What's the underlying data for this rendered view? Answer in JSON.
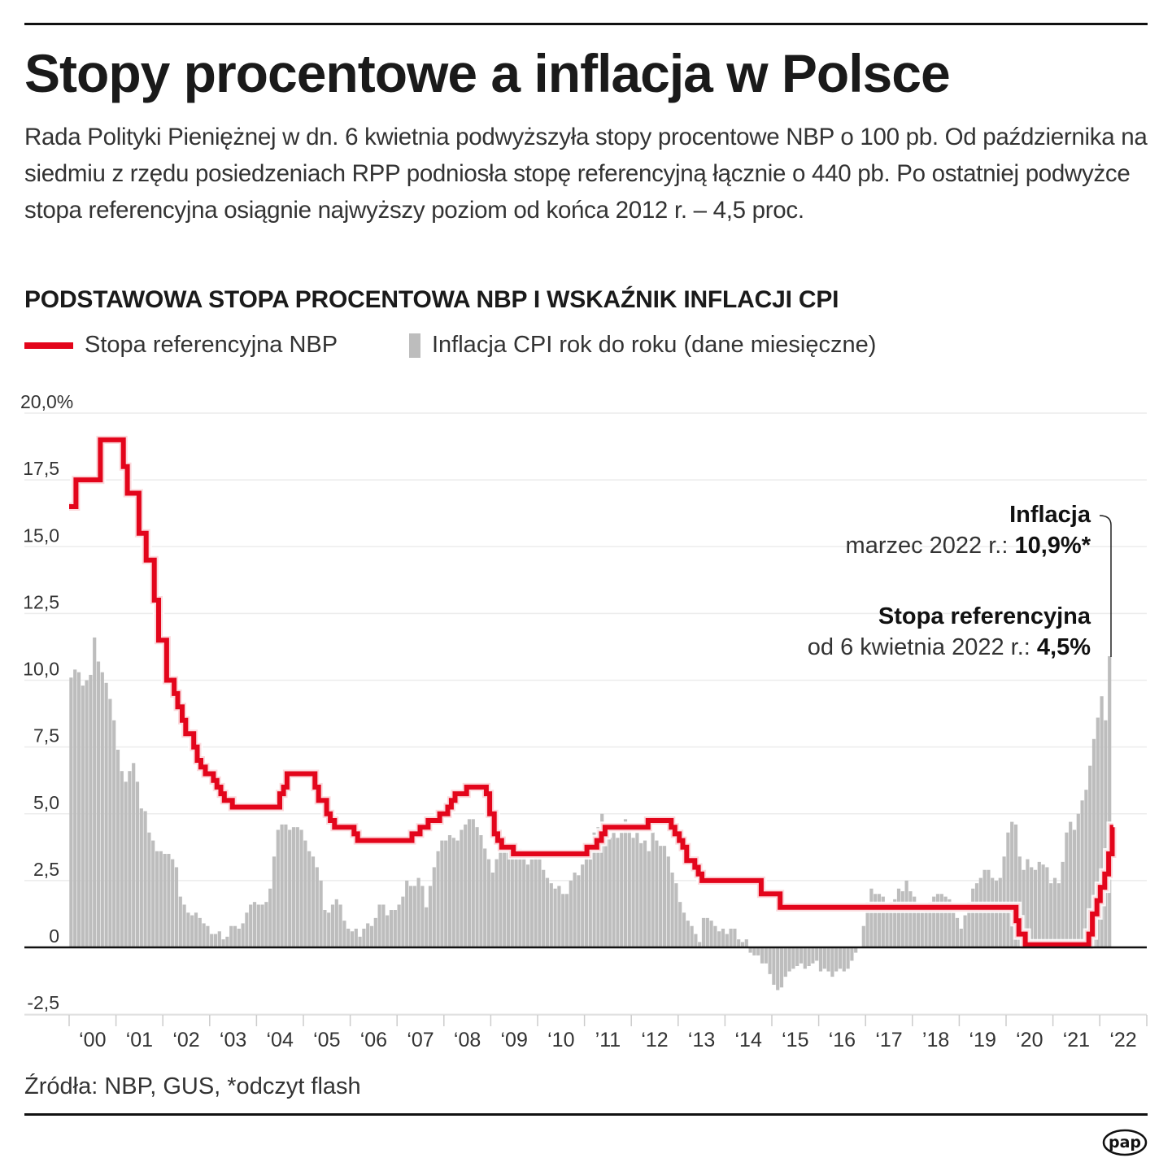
{
  "header": {
    "title": "Stopy procentowe a inflacja w Polsce",
    "lead": "Rada Polityki Pieniężnej w dn. 6 kwietnia podwyższyła stopy procentowe NBP o 100 pb. Od października na siedmiu z rzędu posiedzeniach RPP podniosła stopę referencyjną łącznie o 440 pb. Po ostatniej podwyżce stopa referencyjna osiągnie najwyższy poziom od końca 2012 r. – 4,5 proc."
  },
  "annotations": {
    "inflation_title": "Inflacja",
    "inflation_text": "marzec 2022 r.: ",
    "inflation_value": "10,9%*",
    "rate_title": "Stopa referencyjna",
    "rate_text": "od 6 kwietnia 2022 r.: ",
    "rate_value": "4,5%"
  },
  "footer": {
    "source": "Źródła: NBP, GUS, *odczyt flash",
    "logo": "pap"
  },
  "chart_data": {
    "type": "bar+line",
    "title": "PODSTAWOWA STOPA PROCENTOWA NBP I WSKAŹNIK INFLACJI CPI",
    "legend": {
      "placement": "top-left",
      "line": "Stopa referencyjna NBP",
      "bars": "Inflacja CPI rok do roku (dane miesięczne)"
    },
    "colors": {
      "line": "#e3051b",
      "bars": "#bdbdbd"
    },
    "ylim": [
      -2.5,
      20
    ],
    "y_ticks": [
      {
        "value": 20,
        "label": "20,0%"
      },
      {
        "value": 17.5,
        "label": "17,5"
      },
      {
        "value": 15,
        "label": "15,0"
      },
      {
        "value": 12.5,
        "label": "12,5"
      },
      {
        "value": 10,
        "label": "10,0"
      },
      {
        "value": 7.5,
        "label": "7,5"
      },
      {
        "value": 5,
        "label": "5,0"
      },
      {
        "value": 2.5,
        "label": "2,5"
      },
      {
        "value": 0,
        "label": "0"
      },
      {
        "value": -2.5,
        "label": "-2,5"
      }
    ],
    "x_ticks": [
      "‘00",
      "‘01",
      "‘02",
      "‘03",
      "‘04",
      "‘05",
      "‘06",
      "‘07",
      "‘08",
      "‘09",
      "‘10",
      "’11",
      "‘12",
      "‘13",
      "‘14",
      "‘15",
      "‘16",
      "‘17",
      "’18",
      "‘19",
      "‘20",
      "‘21",
      "‘22"
    ],
    "grid": true,
    "cpi_start": "2000-01",
    "cpi_monthly": [
      10.1,
      10.4,
      10.3,
      9.8,
      10.0,
      10.2,
      11.6,
      10.7,
      10.3,
      9.9,
      9.3,
      8.5,
      7.4,
      6.6,
      6.2,
      6.6,
      6.9,
      6.2,
      5.2,
      5.1,
      4.3,
      4.0,
      3.6,
      3.6,
      3.5,
      3.5,
      3.3,
      3.0,
      1.9,
      1.6,
      1.3,
      1.2,
      1.3,
      1.1,
      0.9,
      0.8,
      0.5,
      0.5,
      0.6,
      0.3,
      0.4,
      0.8,
      0.8,
      0.7,
      0.9,
      1.3,
      1.6,
      1.7,
      1.6,
      1.6,
      1.7,
      2.2,
      3.4,
      4.4,
      4.6,
      4.6,
      4.4,
      4.5,
      4.5,
      4.4,
      4.0,
      3.6,
      3.4,
      3.0,
      2.5,
      1.4,
      1.3,
      1.6,
      1.8,
      1.6,
      1.0,
      0.7,
      0.6,
      0.7,
      0.4,
      0.7,
      0.9,
      0.8,
      1.1,
      1.6,
      1.6,
      1.2,
      1.4,
      1.4,
      1.6,
      1.9,
      2.5,
      2.3,
      2.3,
      2.6,
      2.3,
      1.5,
      2.3,
      3.0,
      3.6,
      4.0,
      4.0,
      4.2,
      4.1,
      4.0,
      4.4,
      4.6,
      4.8,
      4.8,
      4.5,
      4.2,
      3.7,
      3.3,
      2.8,
      3.3,
      3.6,
      4.0,
      3.6,
      3.5,
      3.6,
      3.7,
      3.4,
      3.1,
      3.3,
      3.5,
      3.5,
      2.9,
      2.6,
      2.4,
      2.2,
      2.3,
      2.0,
      2.0,
      2.5,
      2.8,
      2.7,
      3.1,
      3.6,
      3.6,
      4.3,
      4.5,
      5.0,
      4.2,
      4.1,
      4.3,
      4.1,
      4.3,
      4.8,
      4.6,
      4.1,
      4.3,
      3.9,
      4.0,
      3.6,
      4.3,
      4.0,
      3.8,
      3.8,
      3.4,
      2.8,
      2.4,
      1.7,
      1.3,
      1.0,
      0.8,
      0.5,
      0.2,
      1.1,
      1.1,
      1.0,
      0.8,
      0.6,
      0.7,
      0.5,
      0.7,
      0.7,
      0.3,
      0.2,
      0.3,
      -0.2,
      -0.3,
      -0.3,
      -0.6,
      -0.6,
      -1.0,
      -1.4,
      -1.6,
      -1.5,
      -1.1,
      -0.9,
      -0.8,
      -0.7,
      -0.6,
      -0.8,
      -0.7,
      -0.6,
      -0.5,
      -0.9,
      -0.8,
      -0.9,
      -1.1,
      -0.9,
      -0.8,
      -0.9,
      -0.8,
      -0.5,
      -0.2,
      0.0,
      0.8,
      1.7,
      2.2,
      2.0,
      2.0,
      1.9,
      1.5,
      1.7,
      1.8,
      2.2,
      2.1,
      2.5,
      2.1,
      1.9,
      1.4,
      1.3,
      1.6,
      1.7,
      1.9,
      2.0,
      2.0,
      1.9,
      1.8,
      1.3,
      1.1,
      0.7,
      1.2,
      1.7,
      2.2,
      2.4,
      2.6,
      2.9,
      2.9,
      2.6,
      2.5,
      2.6,
      3.4,
      4.3,
      4.7,
      4.6,
      3.4,
      2.9,
      3.3,
      3.0,
      2.9,
      3.2,
      3.1,
      3.0,
      2.4,
      2.6,
      2.4,
      3.2,
      4.3,
      4.7,
      4.4,
      5.0,
      5.5,
      5.9,
      6.8,
      7.8,
      8.6,
      9.4,
      8.5,
      10.9
    ],
    "reference_rate_steps": [
      [
        "2000-01-01",
        16.5
      ],
      [
        "2000-02-24",
        17.5
      ],
      [
        "2000-09-01",
        19.0
      ],
      [
        "2001-02-28",
        18.0
      ],
      [
        "2001-03-29",
        17.0
      ],
      [
        "2001-06-28",
        15.5
      ],
      [
        "2001-08-23",
        14.5
      ],
      [
        "2001-10-26",
        13.0
      ],
      [
        "2001-11-29",
        11.5
      ],
      [
        "2002-01-31",
        10.0
      ],
      [
        "2002-03-28",
        9.5
      ],
      [
        "2002-04-26",
        9.0
      ],
      [
        "2002-05-30",
        8.5
      ],
      [
        "2002-06-27",
        8.0
      ],
      [
        "2002-08-29",
        7.5
      ],
      [
        "2002-09-26",
        7.0
      ],
      [
        "2002-10-24",
        6.75
      ],
      [
        "2002-11-28",
        6.5
      ],
      [
        "2003-01-30",
        6.25
      ],
      [
        "2003-02-27",
        6.0
      ],
      [
        "2003-03-27",
        5.75
      ],
      [
        "2003-04-24",
        5.5
      ],
      [
        "2003-06-26",
        5.25
      ],
      [
        "2004-06-30",
        5.75
      ],
      [
        "2004-07-29",
        6.0
      ],
      [
        "2004-08-26",
        6.5
      ],
      [
        "2005-03-31",
        6.0
      ],
      [
        "2005-04-28",
        5.5
      ],
      [
        "2005-06-30",
        5.0
      ],
      [
        "2005-07-28",
        4.75
      ],
      [
        "2005-08-31",
        4.5
      ],
      [
        "2006-01-31",
        4.25
      ],
      [
        "2006-02-28",
        4.0
      ],
      [
        "2007-04-26",
        4.25
      ],
      [
        "2007-06-28",
        4.5
      ],
      [
        "2007-08-30",
        4.75
      ],
      [
        "2007-11-29",
        5.0
      ],
      [
        "2008-01-31",
        5.25
      ],
      [
        "2008-02-28",
        5.5
      ],
      [
        "2008-03-27",
        5.75
      ],
      [
        "2008-06-26",
        6.0
      ],
      [
        "2008-11-27",
        5.75
      ],
      [
        "2008-12-23",
        5.0
      ],
      [
        "2009-01-28",
        4.25
      ],
      [
        "2009-02-25",
        4.0
      ],
      [
        "2009-03-25",
        3.75
      ],
      [
        "2009-06-25",
        3.5
      ],
      [
        "2011-01-20",
        3.75
      ],
      [
        "2011-04-06",
        4.0
      ],
      [
        "2011-05-12",
        4.25
      ],
      [
        "2011-06-09",
        4.5
      ],
      [
        "2012-05-10",
        4.75
      ],
      [
        "2012-11-08",
        4.5
      ],
      [
        "2012-12-06",
        4.25
      ],
      [
        "2013-01-10",
        4.0
      ],
      [
        "2013-02-07",
        3.75
      ],
      [
        "2013-03-07",
        3.25
      ],
      [
        "2013-05-09",
        3.0
      ],
      [
        "2013-06-06",
        2.75
      ],
      [
        "2013-07-04",
        2.5
      ],
      [
        "2014-10-09",
        2.0
      ],
      [
        "2015-03-05",
        1.5
      ],
      [
        "2020-03-18",
        1.0
      ],
      [
        "2020-04-09",
        0.5
      ],
      [
        "2020-05-29",
        0.1
      ],
      [
        "2021-10-07",
        0.5
      ],
      [
        "2021-11-04",
        1.25
      ],
      [
        "2021-12-09",
        1.75
      ],
      [
        "2022-01-05",
        2.25
      ],
      [
        "2022-02-09",
        2.75
      ],
      [
        "2022-03-09",
        3.5
      ],
      [
        "2022-04-07",
        4.5
      ]
    ],
    "reference_rate_end": "2022-04-15"
  }
}
